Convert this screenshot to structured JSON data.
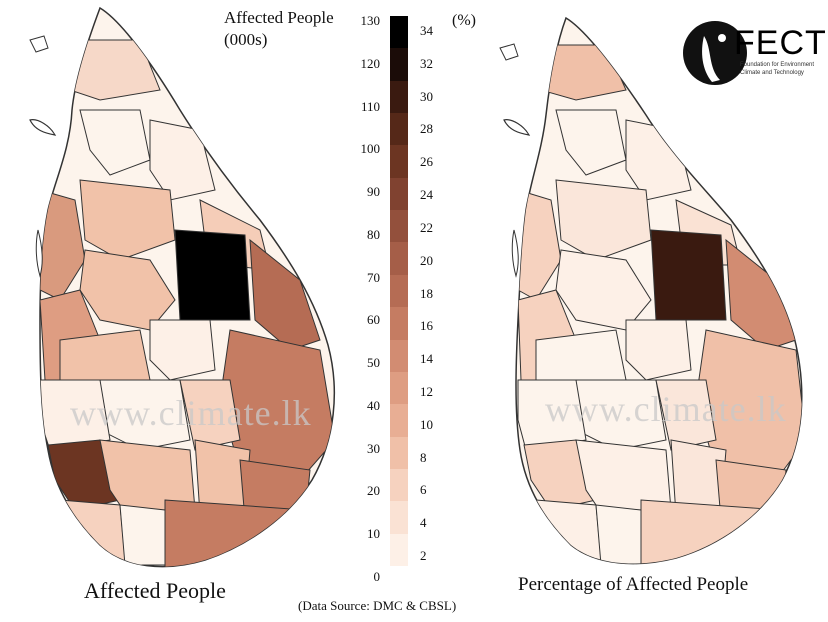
{
  "legend": {
    "title_line1": "Affected People",
    "title_line2": "(000s)",
    "pct_unit": "(%)",
    "left_ticks": [
      "130",
      "120",
      "110",
      "100",
      "90",
      "80",
      "70",
      "60",
      "50",
      "40",
      "30",
      "20",
      "10",
      "0"
    ],
    "right_ticks": [
      "34",
      "32",
      "30",
      "28",
      "26",
      "24",
      "22",
      "20",
      "18",
      "16",
      "14",
      "12",
      "10",
      "8",
      "6",
      "4",
      "2"
    ],
    "colors": [
      "#000000",
      "#1b0c08",
      "#3a1a10",
      "#552818",
      "#6c3522",
      "#804230",
      "#93503c",
      "#a55e48",
      "#b56c54",
      "#c57c62",
      "#d28c72",
      "#de9d82",
      "#e8ae94",
      "#f0c0a8",
      "#f6d2bf",
      "#fae2d4",
      "#fdf0e7"
    ]
  },
  "left_map": {
    "caption": "Affected People",
    "watermark": "www.climate.lk"
  },
  "right_map": {
    "caption": "Percentage of Affected People",
    "watermark": "www.climate.lk"
  },
  "source_note": "(Data Source: DMC & CBSL)",
  "logo": {
    "text": "FECT",
    "small_lines": [
      "Foundation for Environment",
      "Climate and Technology"
    ]
  }
}
